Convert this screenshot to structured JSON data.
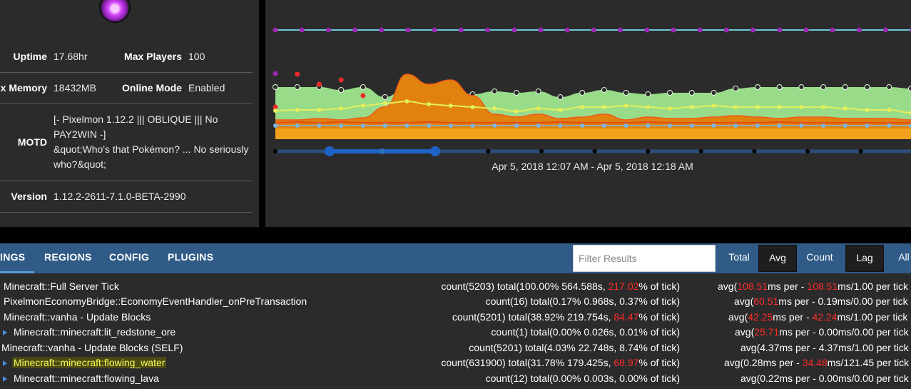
{
  "info": {
    "uptime_label": "Uptime",
    "uptime_value": "17.68hr",
    "max_players_label": "Max Players",
    "max_players_value": "100",
    "max_memory_label": "x Memory",
    "max_memory_value": "18432MB",
    "online_mode_label": "Online Mode",
    "online_mode_value": "Enabled",
    "motd_label": "MOTD",
    "motd_lines": [
      "[- Pixelmon 1.12.2 ||| OBLIQUE ||| No",
      "PAY2WIN -]",
      "&quot;Who's that Pokémon? ... No seriously",
      "who?&quot;"
    ],
    "version_label": "Version",
    "version_value": "1.12.2-2611-7.1.0-BETA-2990"
  },
  "chart": {
    "range_text": "Apr 5, 2018 12:07 AM - Apr 5, 2018 12:18 AM",
    "colors": {
      "top_line": "#6fc6d6",
      "top_dot": "#9c27b0",
      "green_area": "#98dc8a",
      "yellow_line": "#e3ef5a",
      "orange_area": "#e1810e",
      "amber_area": "#f3a21e",
      "red_line": "#e64a19",
      "blue_dot": "#79b8e6",
      "nav": "#1e64c8"
    },
    "green_area": [
      122,
      122,
      122,
      126,
      122,
      136,
      122,
      122,
      122,
      132,
      128,
      130,
      128,
      136,
      130,
      126,
      130,
      132,
      130,
      130,
      130,
      124,
      122,
      122,
      122,
      122,
      122,
      122,
      122,
      124
    ],
    "orange_area": [
      168,
      168,
      166,
      168,
      165,
      150,
      104,
      118,
      112,
      134,
      160,
      164,
      160,
      166,
      164,
      160,
      168,
      164,
      166,
      166,
      164,
      162,
      164,
      166,
      164,
      164,
      166,
      166,
      166,
      168
    ],
    "yellow_line": [
      155,
      154,
      154,
      152,
      148,
      145,
      142,
      146,
      148,
      150,
      152,
      156,
      152,
      154,
      150,
      150,
      148,
      150,
      152,
      150,
      148,
      150,
      150,
      150,
      150,
      150,
      152,
      154,
      154,
      158
    ],
    "red_line": [
      172,
      171,
      172,
      171,
      172,
      172,
      172,
      171,
      172,
      172,
      172,
      172,
      172,
      171,
      172,
      172,
      172,
      171,
      172,
      172,
      172,
      172,
      172,
      171,
      172,
      172,
      172,
      172,
      172,
      172
    ],
    "blue_line": [
      176,
      176,
      176,
      176,
      176,
      176,
      176,
      176,
      176,
      176,
      176,
      176,
      176,
      176,
      176,
      176,
      176,
      176,
      176,
      176,
      176,
      176,
      176,
      176,
      176,
      176,
      176,
      176,
      176,
      176
    ],
    "amber_top": [
      180,
      180,
      180,
      180,
      180,
      180,
      180,
      180,
      180,
      180,
      180,
      180,
      180,
      180,
      180,
      180,
      180,
      180,
      180,
      180,
      180,
      180,
      180,
      180,
      180,
      180,
      180,
      180,
      180,
      180
    ]
  },
  "tabs": [
    {
      "label": "INGS"
    },
    {
      "label": "REGIONS"
    },
    {
      "label": "CONFIG"
    },
    {
      "label": "PLUGINS"
    }
  ],
  "filter": {
    "placeholder": "Filter Results"
  },
  "modes": {
    "total": "Total",
    "avg": "Avg",
    "count": "Count",
    "lag": "Lag",
    "all": "All"
  },
  "rows": [
    {
      "name": "Minecraft::Full Server Tick",
      "stat_a": "count(5203)  total(100.00% 564.588s, ",
      "stat_red": "217.02",
      "stat_b": "% of tick)",
      "avg_a": "avg(",
      "avg_red1": "108.51",
      "avg_b": "ms per - ",
      "avg_red2": "108.51",
      "avg_c": "ms/1.00 per tick"
    },
    {
      "name": "PixelmonEconomyBridge::EconomyEventHandler_onPreTransaction",
      "stat_a": "count(16)  total(0.17% 0.968s, 0.37% of tick)",
      "stat_red": "",
      "stat_b": "",
      "avg_a": "avg(",
      "avg_red1": "60.51",
      "avg_b": "ms per - 0.19ms/0.00 per tick",
      "avg_red2": "",
      "avg_c": ""
    },
    {
      "name": "Minecraft::vanha - Update Blocks",
      "stat_a": "count(5201)  total(38.92% 219.754s, ",
      "stat_red": "84.47",
      "stat_b": "% of tick)",
      "avg_a": "avg(",
      "avg_red1": "42.25",
      "avg_b": "ms per - ",
      "avg_red2": "42.24",
      "avg_c": "ms/1.00 per tick"
    },
    {
      "name": "Minecraft::minecraft:lit_redstone_ore",
      "stat_a": "count(1)  total(0.00% 0.026s, 0.01% of tick)",
      "stat_red": "",
      "stat_b": "",
      "avg_a": "avg(",
      "avg_red1": "25.71",
      "avg_b": "ms per - 0.00ms/0.00 per tick",
      "avg_red2": "",
      "avg_c": ""
    },
    {
      "name": "Minecraft::vanha - Update Blocks (SELF)",
      "stat_a": "count(5201)  total(4.03% 22.748s, 8.74% of tick)",
      "stat_red": "",
      "stat_b": "",
      "avg_a": "avg(4.37ms per - 4.37ms/1.00 per tick",
      "avg_red1": "",
      "avg_b": "",
      "avg_red2": "",
      "avg_c": ""
    },
    {
      "name": "Minecraft::minecraft:flowing_water",
      "stat_a": "count(631900)  total(31.78% 179.425s, ",
      "stat_red": "68.97",
      "stat_b": "% of tick)",
      "avg_a": "avg(0.28ms per - ",
      "avg_red1": "34.48",
      "avg_b": "ms/121.45 per tick",
      "avg_red2": "",
      "avg_c": ""
    },
    {
      "name": "Minecraft::minecraft:flowing_lava",
      "stat_a": "count(12)  total(0.00% 0.003s, 0.00% of tick)",
      "stat_red": "",
      "stat_b": "",
      "avg_a": "avg(0.22ms per - 0.00ms/0.00 per tick",
      "avg_red1": "",
      "avg_b": "",
      "avg_red2": "",
      "avg_c": ""
    }
  ]
}
